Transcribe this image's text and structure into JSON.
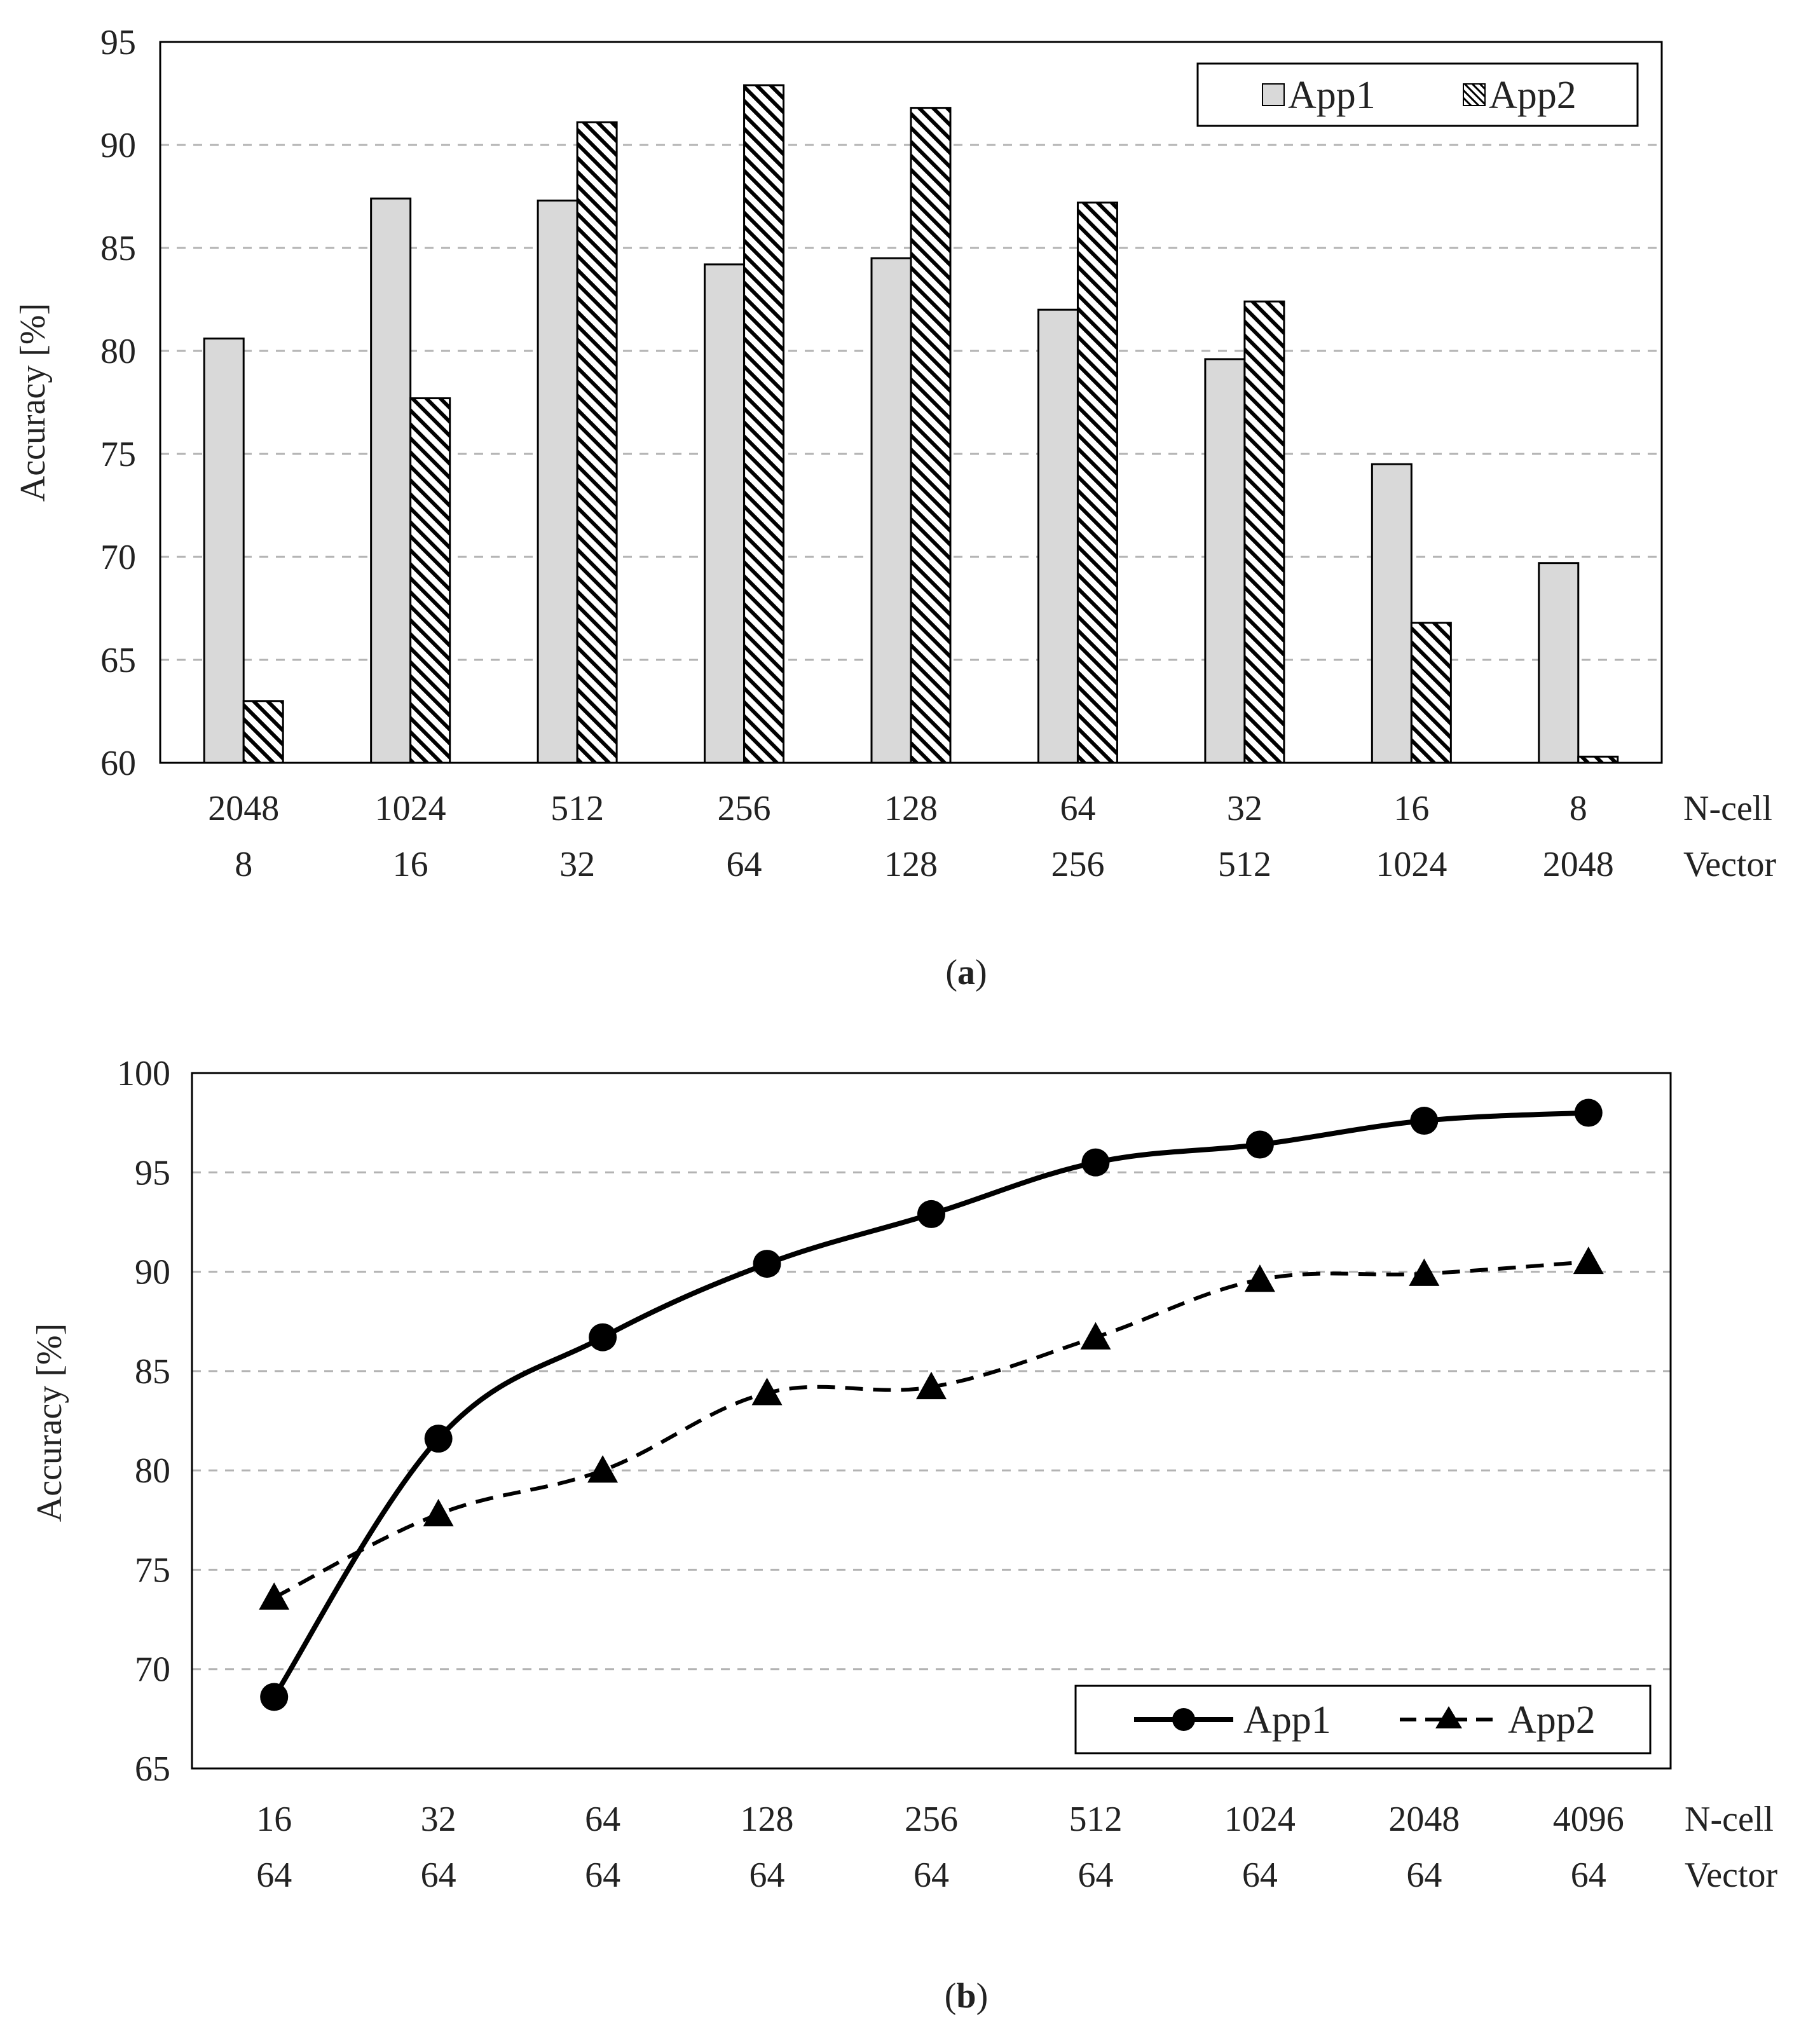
{
  "colors": {
    "app1_bar": "#d9d9d9",
    "outline": "#000000",
    "grid": "#b3b3b3",
    "text": "#222222"
  },
  "chart_data": [
    {
      "type": "bar",
      "panel_label": "a",
      "ylabel": "Accuracy [%]",
      "ylim": [
        60,
        95
      ],
      "yticks": [
        60,
        65,
        70,
        75,
        80,
        85,
        90,
        95
      ],
      "grid": "horizontal dashed",
      "legend_position": "top-right",
      "category_row_labels": [
        "N-cell",
        "Vector"
      ],
      "categories": [
        [
          "2048",
          "8"
        ],
        [
          "1024",
          "16"
        ],
        [
          "512",
          "32"
        ],
        [
          "256",
          "64"
        ],
        [
          "128",
          "128"
        ],
        [
          "64",
          "256"
        ],
        [
          "32",
          "512"
        ],
        [
          "16",
          "1024"
        ],
        [
          "8",
          "2048"
        ]
      ],
      "series": [
        {
          "name": "App1",
          "style": "solid-gray",
          "values": [
            80.6,
            87.4,
            87.3,
            84.2,
            84.5,
            82.0,
            79.6,
            74.5,
            69.7
          ]
        },
        {
          "name": "App2",
          "style": "hatched",
          "values": [
            63.0,
            77.7,
            91.1,
            92.9,
            91.8,
            87.2,
            82.4,
            66.8,
            60.3
          ]
        }
      ]
    },
    {
      "type": "line",
      "panel_label": "b",
      "ylabel": "Accuracy [%]",
      "ylim": [
        65,
        100
      ],
      "yticks": [
        65,
        70,
        75,
        80,
        85,
        90,
        95,
        100
      ],
      "grid": "horizontal dashed",
      "legend_position": "bottom-right",
      "category_row_labels": [
        "N-cell",
        "Vector"
      ],
      "categories": [
        [
          "16",
          "64"
        ],
        [
          "32",
          "64"
        ],
        [
          "64",
          "64"
        ],
        [
          "128",
          "64"
        ],
        [
          "256",
          "64"
        ],
        [
          "512",
          "64"
        ],
        [
          "1024",
          "64"
        ],
        [
          "2048",
          "64"
        ],
        [
          "4096",
          "64"
        ]
      ],
      "series": [
        {
          "name": "App1",
          "style": "solid-circle",
          "values": [
            68.6,
            81.6,
            86.7,
            90.4,
            92.9,
            95.5,
            96.4,
            97.6,
            98.0
          ]
        },
        {
          "name": "App2",
          "style": "dashed-triangle",
          "values": [
            73.6,
            77.8,
            80.0,
            83.9,
            84.2,
            86.7,
            89.6,
            89.9,
            90.5
          ]
        }
      ]
    }
  ]
}
